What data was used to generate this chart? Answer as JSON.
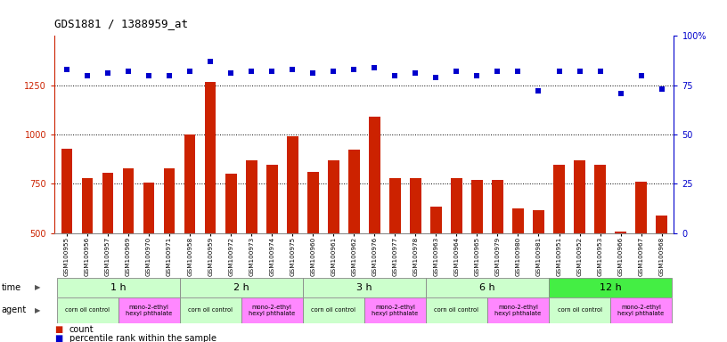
{
  "title": "GDS1881 / 1388959_at",
  "samples": [
    "GSM100955",
    "GSM100956",
    "GSM100957",
    "GSM100969",
    "GSM100970",
    "GSM100971",
    "GSM100958",
    "GSM100959",
    "GSM100972",
    "GSM100973",
    "GSM100974",
    "GSM100975",
    "GSM100960",
    "GSM100961",
    "GSM100962",
    "GSM100976",
    "GSM100977",
    "GSM100978",
    "GSM100963",
    "GSM100964",
    "GSM100965",
    "GSM100979",
    "GSM100980",
    "GSM100981",
    "GSM100951",
    "GSM100952",
    "GSM100953",
    "GSM100966",
    "GSM100967",
    "GSM100968"
  ],
  "counts": [
    930,
    778,
    805,
    830,
    755,
    830,
    1000,
    1268,
    800,
    868,
    848,
    990,
    810,
    868,
    925,
    1090,
    780,
    778,
    635,
    778,
    770,
    770,
    625,
    615,
    848,
    868,
    848,
    510,
    760,
    590
  ],
  "percentiles": [
    83,
    80,
    81,
    82,
    80,
    80,
    82,
    87,
    81,
    82,
    82,
    83,
    81,
    82,
    83,
    84,
    80,
    81,
    79,
    82,
    80,
    82,
    82,
    72,
    82,
    82,
    82,
    71,
    80,
    73
  ],
  "ylim_left": [
    500,
    1500
  ],
  "ylim_right": [
    0,
    100
  ],
  "yticks_left": [
    500,
    750,
    1000,
    1250
  ],
  "yticks_right": [
    0,
    25,
    50,
    75,
    100
  ],
  "bar_color": "#cc2200",
  "dot_color": "#0000cc",
  "time_groups": [
    {
      "label": "1 h",
      "start": 0,
      "end": 6,
      "color": "#ccffcc"
    },
    {
      "label": "2 h",
      "start": 6,
      "end": 12,
      "color": "#ccffcc"
    },
    {
      "label": "3 h",
      "start": 12,
      "end": 18,
      "color": "#ccffcc"
    },
    {
      "label": "6 h",
      "start": 18,
      "end": 24,
      "color": "#ccffcc"
    },
    {
      "label": "12 h",
      "start": 24,
      "end": 30,
      "color": "#44ee44"
    }
  ],
  "agent_groups": [
    {
      "label": "corn oil control",
      "start": 0,
      "end": 3,
      "color": "#ccffcc"
    },
    {
      "label": "mono-2-ethyl\nhexyl phthalate",
      "start": 3,
      "end": 6,
      "color": "#ff88ff"
    },
    {
      "label": "corn oil control",
      "start": 6,
      "end": 9,
      "color": "#ccffcc"
    },
    {
      "label": "mono-2-ethyl\nhexyl phthalate",
      "start": 9,
      "end": 12,
      "color": "#ff88ff"
    },
    {
      "label": "corn oil control",
      "start": 12,
      "end": 15,
      "color": "#ccffcc"
    },
    {
      "label": "mono-2-ethyl\nhexyl phthalate",
      "start": 15,
      "end": 18,
      "color": "#ff88ff"
    },
    {
      "label": "corn oil control",
      "start": 18,
      "end": 21,
      "color": "#ccffcc"
    },
    {
      "label": "mono-2-ethyl\nhexyl phthalate",
      "start": 21,
      "end": 24,
      "color": "#ff88ff"
    },
    {
      "label": "corn oil control",
      "start": 24,
      "end": 27,
      "color": "#ccffcc"
    },
    {
      "label": "mono-2-ethyl\nhexyl phthalate",
      "start": 27,
      "end": 30,
      "color": "#ff88ff"
    }
  ],
  "legend_count_label": "count",
  "legend_pct_label": "percentile rank within the sample",
  "bg_color": "#ffffff",
  "axis_color_left": "#cc2200",
  "axis_color_right": "#0000cc"
}
